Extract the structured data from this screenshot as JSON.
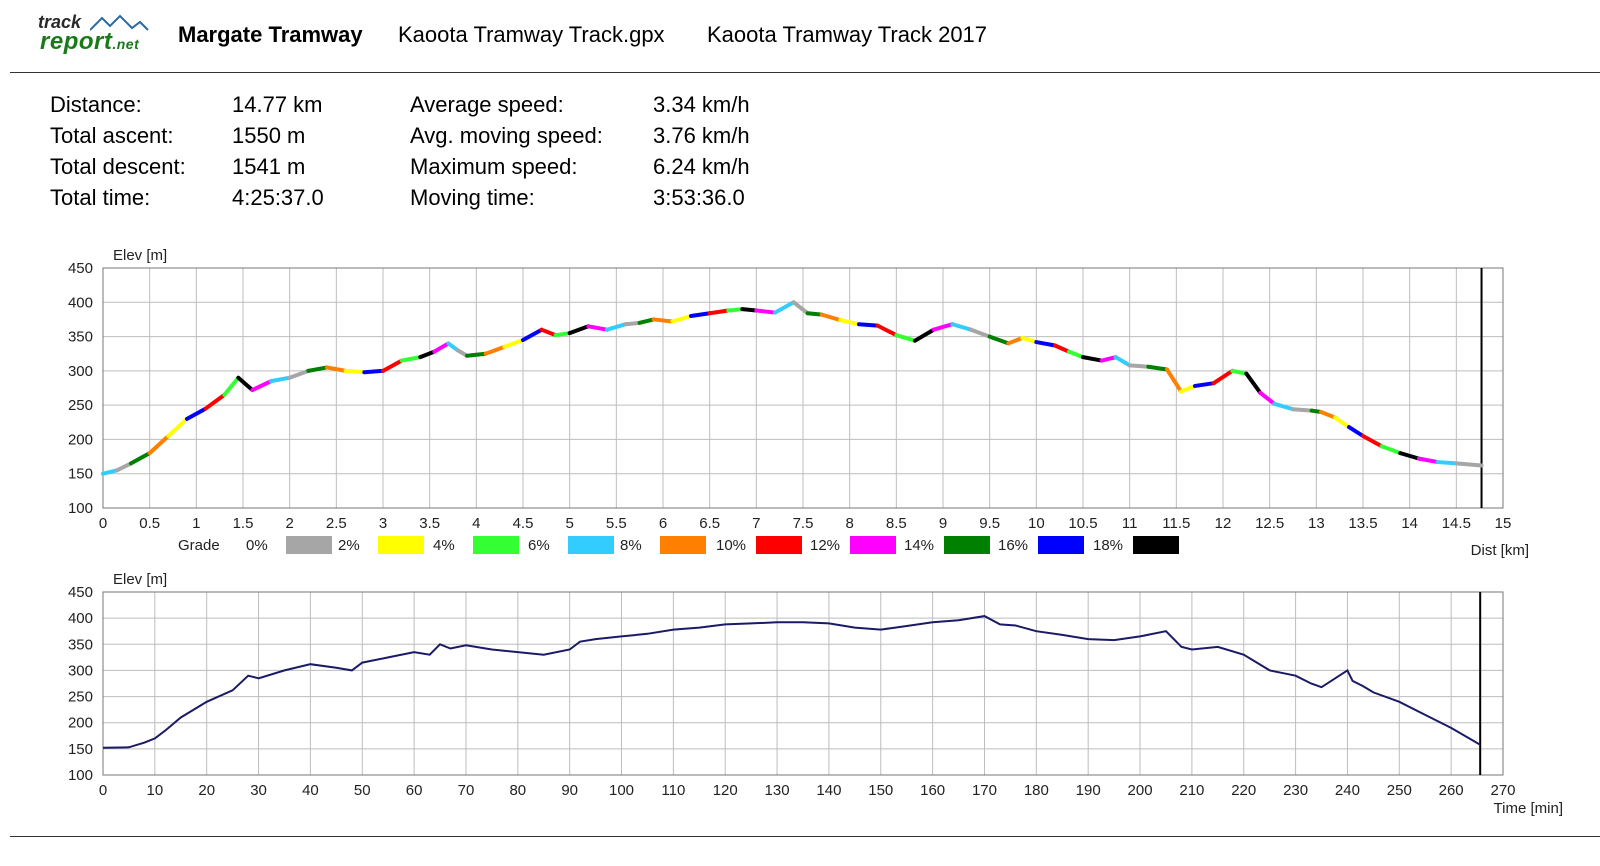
{
  "header": {
    "logo_track": "track",
    "logo_report": "report",
    "logo_net": ".net",
    "track_name": "Margate Tramway",
    "file_name": "Kaoota Tramway Track.gpx",
    "description": "Kaoota Tramway Track 2017"
  },
  "stats": {
    "left": [
      {
        "label": "Distance:",
        "value": "14.77 km"
      },
      {
        "label": "Total ascent:",
        "value": "1550 m"
      },
      {
        "label": "Total descent:",
        "value": "1541 m"
      },
      {
        "label": "Total time:",
        "value": "4:25:37.0"
      }
    ],
    "right": [
      {
        "label": "Average speed:",
        "value": "3.34 km/h"
      },
      {
        "label": "Avg. moving speed:",
        "value": "3.76 km/h"
      },
      {
        "label": "Maximum speed:",
        "value": "6.24 km/h"
      },
      {
        "label": "Moving time:",
        "value": "3:53:36.0"
      }
    ]
  },
  "chart_data": [
    {
      "type": "line",
      "ylabel": "Elev [m]",
      "xlabel": "Dist [km]",
      "xlim": [
        0,
        15
      ],
      "ylim": [
        100,
        450
      ],
      "xticks": [
        "0",
        "0.5",
        "1",
        "1.5",
        "2",
        "2.5",
        "3",
        "3.5",
        "4",
        "4.5",
        "5",
        "5.5",
        "6",
        "6.5",
        "7",
        "7.5",
        "8",
        "8.5",
        "9",
        "9.5",
        "10",
        "10.5",
        "11",
        "11.5",
        "12",
        "12.5",
        "13",
        "13.5",
        "14",
        "14.5",
        "15"
      ],
      "yticks": [
        "450",
        "400",
        "350",
        "300",
        "250",
        "200",
        "150",
        "100"
      ],
      "grid": true,
      "end_marker_x": 14.77,
      "x": [
        0,
        0.15,
        0.3,
        0.5,
        0.7,
        0.9,
        1.1,
        1.3,
        1.45,
        1.6,
        1.8,
        2.0,
        2.2,
        2.4,
        2.6,
        2.8,
        3.0,
        3.2,
        3.4,
        3.55,
        3.7,
        3.8,
        3.9,
        4.1,
        4.3,
        4.5,
        4.7,
        4.85,
        5.0,
        5.2,
        5.4,
        5.6,
        5.75,
        5.9,
        6.1,
        6.3,
        6.5,
        6.7,
        6.85,
        7.0,
        7.2,
        7.4,
        7.55,
        7.7,
        7.9,
        8.1,
        8.3,
        8.5,
        8.7,
        8.9,
        9.1,
        9.3,
        9.5,
        9.7,
        9.85,
        10.0,
        10.2,
        10.35,
        10.5,
        10.7,
        10.85,
        11.0,
        11.2,
        11.4,
        11.55,
        11.7,
        11.9,
        12.1,
        12.25,
        12.4,
        12.55,
        12.75,
        12.95,
        13.05,
        13.2,
        13.35,
        13.5,
        13.7,
        13.9,
        14.1,
        14.3,
        14.5,
        14.77
      ],
      "y": [
        150,
        155,
        165,
        180,
        205,
        230,
        245,
        265,
        290,
        272,
        285,
        290,
        300,
        305,
        300,
        298,
        300,
        315,
        320,
        328,
        340,
        330,
        322,
        325,
        335,
        345,
        360,
        352,
        355,
        365,
        360,
        368,
        370,
        375,
        372,
        380,
        384,
        388,
        390,
        388,
        385,
        400,
        384,
        382,
        374,
        368,
        366,
        352,
        344,
        360,
        368,
        360,
        350,
        340,
        348,
        342,
        337,
        328,
        320,
        315,
        320,
        308,
        306,
        302,
        270,
        278,
        282,
        300,
        296,
        268,
        252,
        244,
        242,
        240,
        232,
        218,
        205,
        190,
        180,
        172,
        167,
        165,
        162
      ],
      "grade_legend": {
        "title": "Grade",
        "entries": [
          {
            "label": "0%",
            "color": "#a6a6a6"
          },
          {
            "label": "2%",
            "color": "#ffff00"
          },
          {
            "label": "4%",
            "color": "#33ff33"
          },
          {
            "label": "6%",
            "color": "#33ccff"
          },
          {
            "label": "8%",
            "color": "#ff7f00"
          },
          {
            "label": "10%",
            "color": "#ff0000"
          },
          {
            "label": "12%",
            "color": "#ff00ff"
          },
          {
            "label": "14%",
            "color": "#008000"
          },
          {
            "label": "16%",
            "color": "#0000ff"
          },
          {
            "label": "18%",
            "color": "#000000"
          }
        ]
      }
    },
    {
      "type": "line",
      "ylabel": "Elev [m]",
      "xlabel": "Time [min]",
      "xlim": [
        0,
        270
      ],
      "ylim": [
        100,
        450
      ],
      "xticks": [
        "0",
        "10",
        "20",
        "30",
        "40",
        "50",
        "60",
        "70",
        "80",
        "90",
        "100",
        "110",
        "120",
        "130",
        "140",
        "150",
        "160",
        "170",
        "180",
        "190",
        "200",
        "210",
        "220",
        "230",
        "240",
        "250",
        "260",
        "270"
      ],
      "yticks": [
        "450",
        "400",
        "350",
        "300",
        "250",
        "200",
        "150",
        "100"
      ],
      "grid": true,
      "end_marker_x": 265.6,
      "line_color": "#1a1a66",
      "x": [
        0,
        5,
        8,
        10,
        12,
        15,
        20,
        25,
        28,
        30,
        35,
        40,
        45,
        48,
        50,
        55,
        60,
        63,
        65,
        67,
        70,
        75,
        80,
        85,
        90,
        92,
        95,
        100,
        105,
        110,
        115,
        120,
        125,
        130,
        135,
        140,
        145,
        150,
        155,
        160,
        165,
        170,
        173,
        176,
        180,
        185,
        190,
        195,
        200,
        205,
        208,
        210,
        215,
        220,
        225,
        230,
        233,
        235,
        240,
        241,
        243,
        245,
        250,
        255,
        260,
        265.6
      ],
      "y": [
        152,
        153,
        162,
        170,
        185,
        210,
        240,
        262,
        290,
        285,
        300,
        312,
        305,
        300,
        315,
        325,
        335,
        330,
        350,
        342,
        348,
        340,
        335,
        330,
        340,
        355,
        360,
        365,
        370,
        378,
        382,
        388,
        390,
        392,
        392,
        390,
        382,
        378,
        385,
        392,
        396,
        404,
        388,
        386,
        375,
        368,
        360,
        358,
        365,
        375,
        345,
        340,
        345,
        330,
        300,
        290,
        275,
        268,
        300,
        280,
        270,
        258,
        240,
        215,
        190,
        158
      ]
    }
  ]
}
